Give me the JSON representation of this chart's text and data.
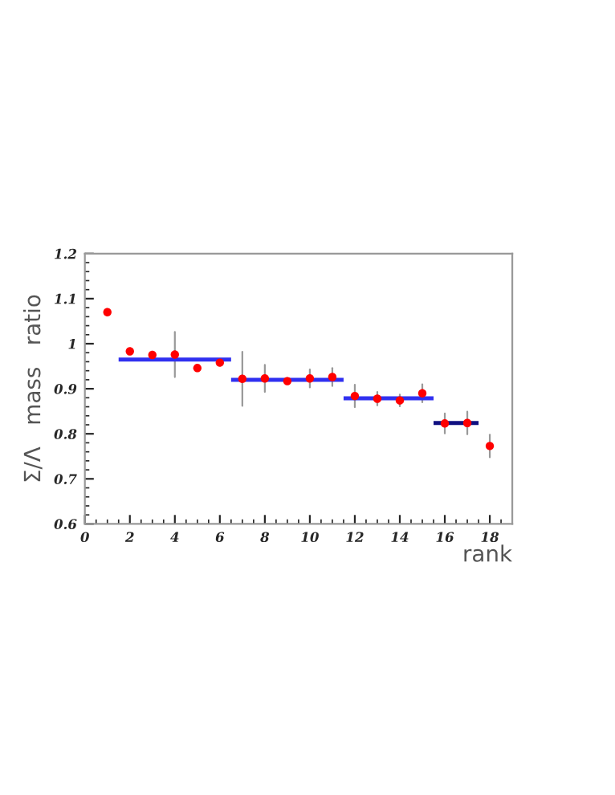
{
  "chart_data": {
    "type": "scatter",
    "xlabel": "rank",
    "ylabel": "Σ/Λ   mass   ratio",
    "xlim": [
      0,
      19
    ],
    "ylim": [
      0.6,
      1.2
    ],
    "xticks": [
      0,
      2,
      4,
      6,
      8,
      10,
      12,
      14,
      16,
      18
    ],
    "yticks": [
      {
        "value": 0.6,
        "label": "0.6"
      },
      {
        "value": 0.7,
        "label": "0.7"
      },
      {
        "value": 0.8,
        "label": "0.8"
      },
      {
        "value": 0.9,
        "label": "0.9"
      },
      {
        "value": 1,
        "label": "1"
      },
      {
        "value": 1.1,
        "label": "1.1"
      },
      {
        "value": 1.2,
        "label": "1.2"
      }
    ],
    "grid": false,
    "legend": false,
    "series": [
      {
        "marker": "circle",
        "color": "#ff0000",
        "x": [
          1,
          2,
          3,
          4,
          5,
          6,
          7,
          8,
          9,
          10,
          11,
          12,
          13,
          14,
          15,
          16,
          17,
          18
        ],
        "values": [
          1.07,
          0.983,
          0.975,
          0.976,
          0.946,
          0.958,
          0.922,
          0.923,
          0.917,
          0.923,
          0.926,
          0.884,
          0.878,
          0.874,
          0.89,
          0.823,
          0.824,
          0.773
        ],
        "errors": [
          null,
          null,
          null,
          0.05,
          null,
          null,
          0.06,
          0.03,
          null,
          0.02,
          0.02,
          0.025,
          0.015,
          0.013,
          0.02,
          0.022,
          0.025,
          0.025
        ]
      },
      {
        "type": "line",
        "marker": "none",
        "color": "#3030f0",
        "x": [
          1.5,
          6.5
        ],
        "values": [
          0.965,
          0.965
        ]
      },
      {
        "type": "line",
        "marker": "none",
        "color": "#3030f0",
        "x": [
          6.5,
          11.5
        ],
        "values": [
          0.92,
          0.92
        ]
      },
      {
        "type": "line",
        "marker": "none",
        "color": "#3030f0",
        "x": [
          11.5,
          15.5
        ],
        "values": [
          0.879,
          0.879
        ]
      },
      {
        "type": "line",
        "marker": "none",
        "color": "#101080",
        "x": [
          15.5,
          17.5
        ],
        "values": [
          0.824,
          0.824
        ]
      }
    ]
  }
}
